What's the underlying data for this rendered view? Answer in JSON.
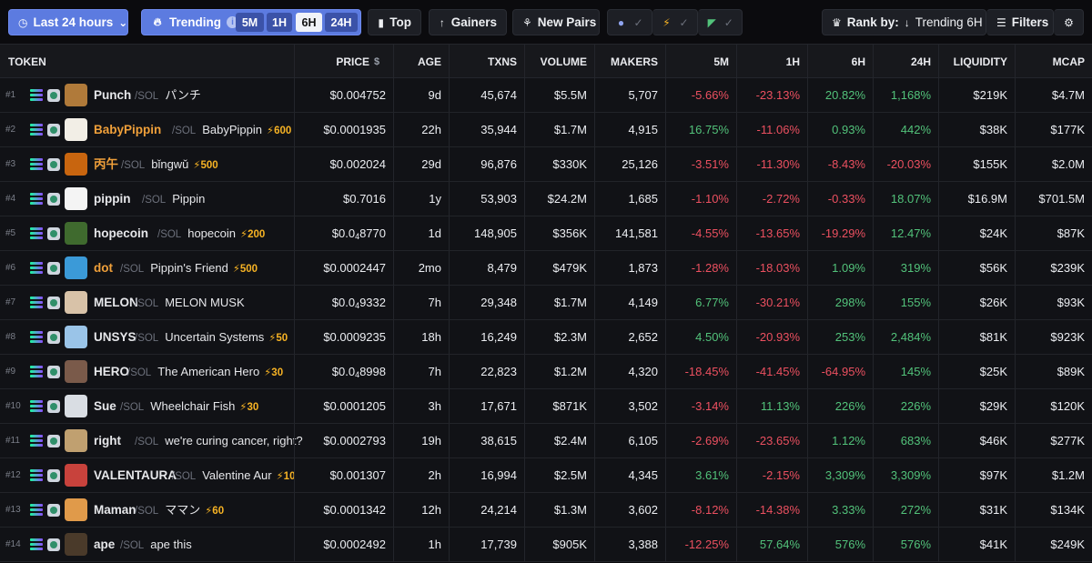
{
  "toolbar": {
    "time_filter": "Last 24 hours",
    "trending_label": "Trending",
    "trending_options": [
      "5M",
      "1H",
      "6H",
      "24H"
    ],
    "trending_active": "6H",
    "top_label": "Top",
    "gainers_label": "Gainers",
    "new_pairs_label": "New Pairs",
    "rank_by_label": "Rank by:",
    "rank_by_value": "Trending 6H",
    "filters_label": "Filters"
  },
  "columns": [
    "TOKEN",
    "PRICE",
    "AGE",
    "TXNS",
    "VOLUME",
    "MAKERS",
    "5M",
    "1H",
    "6H",
    "24H",
    "LIQUIDITY",
    "MCAP"
  ],
  "rows": [
    {
      "rank": "#1",
      "symbol": "Punch",
      "chain": "/SOL",
      "name": "パンチ",
      "boost": "",
      "price": "$0.004752",
      "age": "9d",
      "txns": "45,674",
      "volume": "$5.5M",
      "makers": "5,707",
      "m5": "-5.66%",
      "h1": "-23.13%",
      "h6": "20.82%",
      "h24": "1,168%",
      "liquidity": "$219K",
      "mcap": "$4.7M"
    },
    {
      "rank": "#2",
      "symbol": "BabyPippin",
      "chain": "/SOL",
      "name": "BabyPippin",
      "boost": "⚡600",
      "price": "$0.0001935",
      "age": "22h",
      "txns": "35,944",
      "volume": "$1.7M",
      "makers": "4,915",
      "m5": "16.75%",
      "h1": "-11.06%",
      "h6": "0.93%",
      "h24": "442%",
      "liquidity": "$38K",
      "mcap": "$177K"
    },
    {
      "rank": "#3",
      "symbol": "丙午",
      "chain": "/SOL",
      "name": "bǐngwǔ",
      "boost": "⚡500",
      "price": "$0.002024",
      "age": "29d",
      "txns": "96,876",
      "volume": "$330K",
      "makers": "25,126",
      "m5": "-3.51%",
      "h1": "-11.30%",
      "h6": "-8.43%",
      "h24": "-20.03%",
      "liquidity": "$155K",
      "mcap": "$2.0M"
    },
    {
      "rank": "#4",
      "symbol": "pippin",
      "chain": "/SOL",
      "name": "Pippin",
      "boost": "",
      "price": "$0.7016",
      "age": "1y",
      "txns": "53,903",
      "volume": "$24.2M",
      "makers": "1,685",
      "m5": "-1.10%",
      "h1": "-2.72%",
      "h6": "-0.33%",
      "h24": "18.07%",
      "liquidity": "$16.9M",
      "mcap": "$701.5M"
    },
    {
      "rank": "#5",
      "symbol": "hopecoin",
      "chain": "/SOL",
      "name": "hopecoin",
      "boost": "⚡200",
      "price_main": "$0.0",
      "price_sub": "4",
      "price_tail": "8770",
      "age": "1d",
      "txns": "148,905",
      "volume": "$356K",
      "makers": "141,581",
      "m5": "-4.55%",
      "h1": "-13.65%",
      "h6": "-19.29%",
      "h24": "12.47%",
      "liquidity": "$24K",
      "mcap": "$87K"
    },
    {
      "rank": "#6",
      "symbol": "dot",
      "chain": "/SOL",
      "name": "Pippin's Friend",
      "boost": "⚡500",
      "price": "$0.0002447",
      "age": "2mo",
      "txns": "8,479",
      "volume": "$479K",
      "makers": "1,873",
      "m5": "-1.28%",
      "h1": "-18.03%",
      "h6": "1.09%",
      "h24": "319%",
      "liquidity": "$56K",
      "mcap": "$239K"
    },
    {
      "rank": "#7",
      "symbol": "MELON",
      "chain": "/SOL",
      "name": "MELON MUSK",
      "boost": "",
      "price_main": "$0.0",
      "price_sub": "4",
      "price_tail": "9332",
      "age": "7h",
      "txns": "29,348",
      "volume": "$1.7M",
      "makers": "4,149",
      "m5": "6.77%",
      "h1": "-30.21%",
      "h6": "298%",
      "h24": "155%",
      "liquidity": "$26K",
      "mcap": "$93K"
    },
    {
      "rank": "#8",
      "symbol": "UNSYS",
      "chain": "/SOL",
      "name": "Uncertain Systems",
      "boost": "⚡50",
      "price": "$0.0009235",
      "age": "18h",
      "txns": "16,249",
      "volume": "$2.3M",
      "makers": "2,652",
      "m5": "4.50%",
      "h1": "-20.93%",
      "h6": "253%",
      "h24": "2,484%",
      "liquidity": "$81K",
      "mcap": "$923K"
    },
    {
      "rank": "#9",
      "symbol": "HERO",
      "chain": "/SOL",
      "name": "The American Hero",
      "boost": "⚡30",
      "price_main": "$0.0",
      "price_sub": "4",
      "price_tail": "8998",
      "age": "7h",
      "txns": "22,823",
      "volume": "$1.2M",
      "makers": "4,320",
      "m5": "-18.45%",
      "h1": "-41.45%",
      "h6": "-64.95%",
      "h24": "145%",
      "liquidity": "$25K",
      "mcap": "$89K"
    },
    {
      "rank": "#10",
      "symbol": "Sue",
      "chain": "/SOL",
      "name": "Wheelchair Fish",
      "boost": "⚡30",
      "price": "$0.0001205",
      "age": "3h",
      "txns": "17,671",
      "volume": "$871K",
      "makers": "3,502",
      "m5": "-3.14%",
      "h1": "11.13%",
      "h6": "226%",
      "h24": "226%",
      "liquidity": "$29K",
      "mcap": "$120K"
    },
    {
      "rank": "#11",
      "symbol": "right",
      "chain": "/SOL",
      "name": "we're curing cancer, right?",
      "boost": "",
      "price": "$0.0002793",
      "age": "19h",
      "txns": "38,615",
      "volume": "$2.4M",
      "makers": "6,105",
      "m5": "-2.69%",
      "h1": "-23.65%",
      "h6": "1.12%",
      "h24": "683%",
      "liquidity": "$46K",
      "mcap": "$277K"
    },
    {
      "rank": "#12",
      "symbol": "VALENTAURA",
      "chain": "/SOL",
      "name": "Valentine Aur",
      "boost": "⚡10",
      "price": "$0.001307",
      "age": "2h",
      "txns": "16,994",
      "volume": "$2.5M",
      "makers": "4,345",
      "m5": "3.61%",
      "h1": "-2.15%",
      "h6": "3,309%",
      "h24": "3,309%",
      "liquidity": "$97K",
      "mcap": "$1.2M"
    },
    {
      "rank": "#13",
      "symbol": "Maman",
      "chain": "/SOL",
      "name": "ママン",
      "boost": "⚡60",
      "price": "$0.0001342",
      "age": "12h",
      "txns": "24,214",
      "volume": "$1.3M",
      "makers": "3,602",
      "m5": "-8.12%",
      "h1": "-14.38%",
      "h6": "3.33%",
      "h24": "272%",
      "liquidity": "$31K",
      "mcap": "$134K"
    },
    {
      "rank": "#14",
      "symbol": "ape",
      "chain": "/SOL",
      "name": "ape this",
      "boost": "",
      "price": "$0.0002492",
      "age": "1h",
      "txns": "17,739",
      "volume": "$905K",
      "makers": "3,388",
      "m5": "-12.25%",
      "h1": "57.64%",
      "h6": "576%",
      "h24": "576%",
      "liquidity": "$41K",
      "mcap": "$249K"
    }
  ],
  "colors": {
    "positive": "#52c27a",
    "negative": "#ec5060",
    "accent": "#5c7be0",
    "boosted_symbol": "#f0a03a",
    "boost": "#f7b324"
  }
}
